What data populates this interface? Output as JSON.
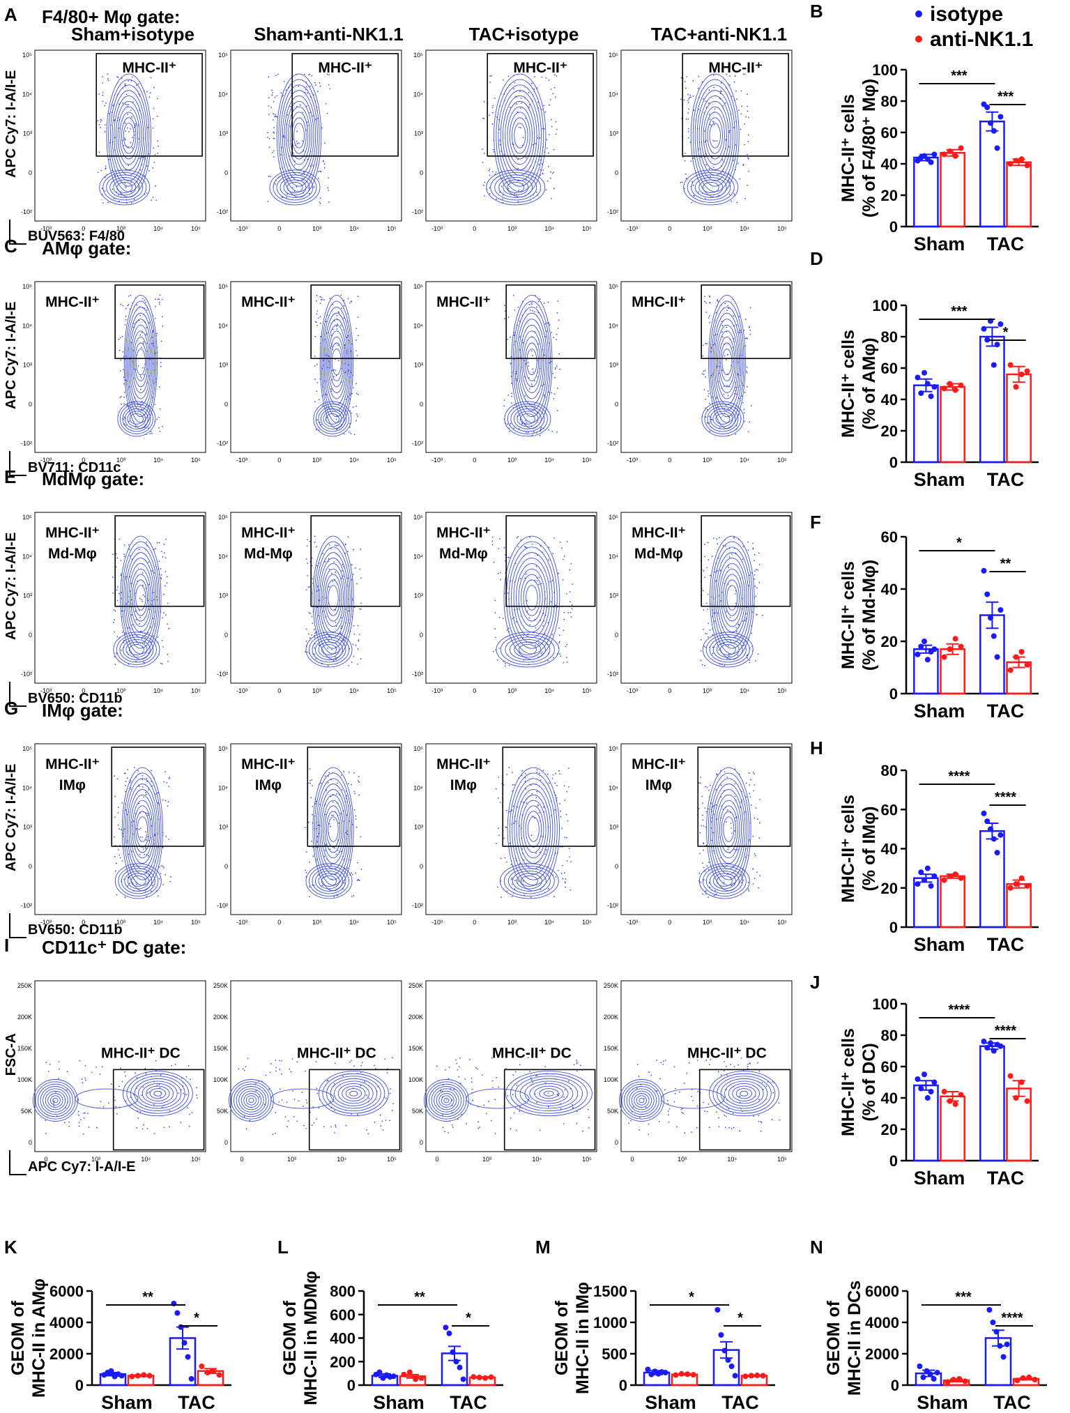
{
  "colors": {
    "isotype": "#1a1aff",
    "anti": "#ff1a1a",
    "flow": "#3d4fe0",
    "axis": "#000000"
  },
  "legend": {
    "items": [
      {
        "label": "isotype",
        "color": "#1a1aff"
      },
      {
        "label": "anti-NK1.1",
        "color": "#ff1a1a"
      }
    ]
  },
  "column_titles": [
    "Sham+isotype",
    "Sham+anti-NK1.1",
    "TAC+isotype",
    "TAC+anti-NK1.1"
  ],
  "flow_rows": [
    {
      "letter": "A",
      "gate": "F4/80+ Mφ gate:",
      "ylabel": "APC Cy7: I-A/I-E",
      "xlabel": "BUV563: F4/80",
      "gate_label_1": "MHC-II⁺",
      "gate_label_2": "",
      "y_ticks": [
        "10⁵",
        "10⁴",
        "10³",
        "0",
        "-10²"
      ],
      "x_ticks": [
        "-10³",
        "0",
        "10³",
        "10⁴",
        "10⁵"
      ]
    },
    {
      "letter": "C",
      "gate": "AMφ gate:",
      "ylabel": "APC Cy7: I-A/I-E",
      "xlabel": "BV711: CD11c",
      "gate_label_1": "MHC-II⁺",
      "gate_label_2": "",
      "y_ticks": [
        "10⁵",
        "10⁴",
        "10³",
        "0",
        "-10²"
      ],
      "x_ticks": [
        "-10³",
        "0",
        "10³",
        "10⁴",
        "10⁵"
      ]
    },
    {
      "letter": "E",
      "gate": "MdMφ gate:",
      "ylabel": "APC Cy7: I-A/I-E",
      "xlabel": "BV650: CD11b",
      "gate_label_1": "MHC-II⁺",
      "gate_label_2": "Md-Mφ",
      "y_ticks": [
        "10⁵",
        "10⁴",
        "10³",
        "0",
        "-10²"
      ],
      "x_ticks": [
        "-10³",
        "0",
        "10³",
        "10⁴",
        "10⁵"
      ]
    },
    {
      "letter": "G",
      "gate": "IMφ gate:",
      "ylabel": "APC Cy7: I-A/I-E",
      "xlabel": "BV650: CD11b",
      "gate_label_1": "MHC-II⁺",
      "gate_label_2": "IMφ",
      "y_ticks": [
        "10⁵",
        "10⁴",
        "10³",
        "0",
        "-10²"
      ],
      "x_ticks": [
        "-10³",
        "0",
        "10³",
        "10⁴",
        "10⁵"
      ]
    },
    {
      "letter": "I",
      "gate": "CD11c⁺ DC gate:",
      "ylabel": "FSC-A",
      "xlabel": "APC Cy7: I-A/I-E",
      "gate_label_1": "MHC-II⁺ DC",
      "gate_label_2": "",
      "y_ticks": [
        "250K",
        "200K",
        "150K",
        "100K",
        "50K",
        "0"
      ],
      "x_ticks": [
        "0",
        "10³",
        "10⁴",
        "10⁵"
      ]
    }
  ],
  "chart_data": [
    {
      "panel": "B",
      "type": "bar",
      "ylabel_1": "MHC-II⁺ cells",
      "ylabel_2": "(% of F4/80⁺ Mφ)",
      "ylim": [
        0,
        100
      ],
      "ticks": [
        0,
        20,
        40,
        60,
        80,
        100
      ],
      "categories": [
        "Sham",
        "TAC"
      ],
      "series": [
        {
          "name": "isotype",
          "values": [
            44,
            67
          ],
          "sem": [
            2,
            6
          ],
          "points": [
            [
              42,
              44,
              45,
              43,
              41,
              46
            ],
            [
              78,
              76,
              66,
              61,
              50,
              70
            ]
          ]
        },
        {
          "name": "anti-NK1.1",
          "values": [
            47,
            41
          ],
          "sem": [
            2,
            2
          ],
          "points": [
            [
              46,
              48,
              45,
              50
            ],
            [
              40,
              42,
              43,
              39
            ]
          ]
        }
      ],
      "sig": [
        {
          "label": "***",
          "type": "between"
        },
        {
          "label": "***",
          "type": "within"
        }
      ]
    },
    {
      "panel": "D",
      "type": "bar",
      "ylabel_1": "MHC-II⁺ cells",
      "ylabel_2": "(% of AMφ)",
      "ylim": [
        0,
        100
      ],
      "ticks": [
        0,
        20,
        40,
        60,
        80,
        100
      ],
      "categories": [
        "Sham",
        "TAC"
      ],
      "series": [
        {
          "name": "isotype",
          "values": [
            49,
            80
          ],
          "sem": [
            4,
            6
          ],
          "points": [
            [
              54,
              44,
              57,
              50,
              42,
              48
            ],
            [
              85,
              78,
              90,
              62,
              75,
              88
            ]
          ]
        },
        {
          "name": "anti-NK1.1",
          "values": [
            48,
            56
          ],
          "sem": [
            2,
            5
          ],
          "points": [
            [
              47,
              50,
              46,
              49
            ],
            [
              62,
              48,
              56,
              58
            ]
          ]
        }
      ],
      "sig": [
        {
          "label": "***",
          "type": "between"
        },
        {
          "label": "*",
          "type": "within"
        }
      ]
    },
    {
      "panel": "F",
      "type": "bar",
      "ylabel_1": "MHC-II⁺ cells",
      "ylabel_2": "(% of Md-Mφ)",
      "ylim": [
        0,
        60
      ],
      "ticks": [
        0,
        20,
        40,
        60
      ],
      "categories": [
        "Sham",
        "TAC"
      ],
      "series": [
        {
          "name": "isotype",
          "values": [
            17,
            30
          ],
          "sem": [
            1.5,
            5
          ],
          "points": [
            [
              15,
              18,
              20,
              13,
              16,
              17
            ],
            [
              47,
              38,
              29,
              22,
              14,
              32
            ]
          ]
        },
        {
          "name": "anti-NK1.1",
          "values": [
            17,
            12
          ],
          "sem": [
            2,
            2
          ],
          "points": [
            [
              14,
              17,
              21,
              18
            ],
            [
              9,
              14,
              16,
              11
            ]
          ]
        }
      ],
      "sig": [
        {
          "label": "*",
          "type": "between"
        },
        {
          "label": "**",
          "type": "within"
        }
      ]
    },
    {
      "panel": "H",
      "type": "bar",
      "ylabel_1": "MHC-II⁺ cells",
      "ylabel_2": "(% of IMφ)",
      "ylim": [
        0,
        80
      ],
      "ticks": [
        0,
        20,
        40,
        60,
        80
      ],
      "categories": [
        "Sham",
        "TAC"
      ],
      "series": [
        {
          "name": "isotype",
          "values": [
            25,
            49
          ],
          "sem": [
            2,
            4
          ],
          "points": [
            [
              22,
              28,
              24,
              30,
              21,
              26
            ],
            [
              58,
              54,
              50,
              45,
              38,
              47
            ]
          ]
        },
        {
          "name": "anti-NK1.1",
          "values": [
            26,
            22
          ],
          "sem": [
            1,
            2
          ],
          "points": [
            [
              24,
              26,
              27,
              25
            ],
            [
              20,
              22,
              25,
              21
            ]
          ]
        }
      ],
      "sig": [
        {
          "label": "****",
          "type": "between"
        },
        {
          "label": "****",
          "type": "within"
        }
      ]
    },
    {
      "panel": "J",
      "type": "bar",
      "ylabel_1": "MHC-II⁺ cells",
      "ylabel_2": "(% of DC)",
      "ylim": [
        0,
        100
      ],
      "ticks": [
        0,
        20,
        40,
        60,
        80,
        100
      ],
      "categories": [
        "Sham",
        "TAC"
      ],
      "series": [
        {
          "name": "isotype",
          "values": [
            48,
            73
          ],
          "sem": [
            3,
            2
          ],
          "points": [
            [
              52,
              46,
              55,
              40,
              44,
              50
            ],
            [
              76,
              72,
              75,
              70,
              74,
              73
            ]
          ]
        },
        {
          "name": "anti-NK1.1",
          "values": [
            41,
            46
          ],
          "sem": [
            3,
            5
          ],
          "points": [
            [
              44,
              38,
              36,
              42
            ],
            [
              54,
              40,
              50,
              38
            ]
          ]
        }
      ],
      "sig": [
        {
          "label": "****",
          "type": "between"
        },
        {
          "label": "****",
          "type": "within"
        }
      ]
    },
    {
      "panel": "K",
      "type": "bar",
      "ylabel_1": "GEOM of",
      "ylabel_2": "MHC-II in AMφ",
      "ylim": [
        0,
        6000
      ],
      "ticks": [
        0,
        2000,
        4000,
        6000
      ],
      "categories": [
        "Sham",
        "TAC"
      ],
      "series": [
        {
          "name": "isotype",
          "values": [
            700,
            3000
          ],
          "sem": [
            100,
            700
          ],
          "points": [
            [
              650,
              800,
              900,
              550,
              700,
              600
            ],
            [
              5200,
              4600,
              3700,
              2700,
              1800,
              400
            ]
          ]
        },
        {
          "name": "anti-NK1.1",
          "values": [
            600,
            900
          ],
          "sem": [
            50,
            150
          ],
          "points": [
            [
              550,
              600,
              650,
              600
            ],
            [
              1200,
              800,
              900,
              650
            ]
          ]
        }
      ],
      "sig": [
        {
          "label": "**",
          "type": "between"
        },
        {
          "label": "*",
          "type": "within"
        }
      ]
    },
    {
      "panel": "L",
      "type": "bar",
      "ylabel_1": "GEOM of",
      "ylabel_2": "MHC-II in MDMφ",
      "ylim": [
        0,
        800
      ],
      "ticks": [
        0,
        200,
        400,
        600,
        800
      ],
      "categories": [
        "Sham",
        "TAC"
      ],
      "series": [
        {
          "name": "isotype",
          "values": [
            80,
            270
          ],
          "sem": [
            15,
            60
          ],
          "points": [
            [
              90,
              110,
              60,
              85,
              70,
              75
            ],
            [
              490,
              440,
              280,
              200,
              150,
              50
            ]
          ]
        },
        {
          "name": "anti-NK1.1",
          "values": [
            75,
            65
          ],
          "sem": [
            15,
            5
          ],
          "points": [
            [
              90,
              110,
              50,
              60
            ],
            [
              70,
              65,
              60,
              68
            ]
          ]
        }
      ],
      "sig": [
        {
          "label": "**",
          "type": "between"
        },
        {
          "label": "*",
          "type": "within"
        }
      ]
    },
    {
      "panel": "M",
      "type": "bar",
      "ylabel_1": "GEOM of",
      "ylabel_2": "MHC-II in IMφ",
      "ylim": [
        0,
        1500
      ],
      "ticks": [
        0,
        500,
        1000,
        1500
      ],
      "categories": [
        "Sham",
        "TAC"
      ],
      "series": [
        {
          "name": "isotype",
          "values": [
            200,
            560
          ],
          "sem": [
            30,
            130
          ],
          "points": [
            [
              250,
              170,
              220,
              180,
              210,
              200
            ],
            [
              1200,
              800,
              550,
              400,
              300,
              150
            ]
          ]
        },
        {
          "name": "anti-NK1.1",
          "values": [
            170,
            150
          ],
          "sem": [
            10,
            10
          ],
          "points": [
            [
              160,
              180,
              175,
              165
            ],
            [
              140,
              150,
              155,
              150
            ]
          ]
        }
      ],
      "sig": [
        {
          "label": "*",
          "type": "between"
        },
        {
          "label": "*",
          "type": "within"
        }
      ]
    },
    {
      "panel": "N",
      "type": "bar",
      "ylabel_1": "GEOM of",
      "ylabel_2": "MHC-II in DCs",
      "ylim": [
        0,
        6000
      ],
      "ticks": [
        0,
        2000,
        4000,
        6000
      ],
      "categories": [
        "Sham",
        "TAC"
      ],
      "series": [
        {
          "name": "isotype",
          "values": [
            750,
            3000
          ],
          "sem": [
            200,
            500
          ],
          "points": [
            [
              1200,
              500,
              900,
              700,
              400,
              800
            ],
            [
              4800,
              4000,
              3400,
              2500,
              1800,
              2600
            ]
          ]
        },
        {
          "name": "anti-NK1.1",
          "values": [
            300,
            400
          ],
          "sem": [
            80,
            60
          ],
          "points": [
            [
              200,
              350,
              400,
              250
            ],
            [
              300,
              450,
              500,
              350
            ]
          ]
        }
      ],
      "sig": [
        {
          "label": "***",
          "type": "between"
        },
        {
          "label": "****",
          "type": "within"
        }
      ]
    }
  ]
}
